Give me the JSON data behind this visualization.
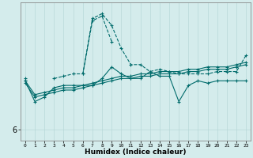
{
  "xlabel": "Humidex (Indice chaleur)",
  "bg_color": "#d4ecec",
  "line_color": "#006b6b",
  "grid_color": "#b8d8d8",
  "x_ticks": [
    0,
    1,
    2,
    3,
    4,
    5,
    6,
    7,
    8,
    9,
    10,
    11,
    12,
    13,
    14,
    15,
    16,
    17,
    18,
    19,
    20,
    21,
    22,
    23
  ],
  "ylim": [
    5.5,
    11.5
  ],
  "y_tick_value": 6,
  "series_smooth1": [
    8.1,
    7.5,
    7.6,
    7.7,
    7.8,
    7.8,
    7.9,
    8.0,
    8.1,
    8.2,
    8.3,
    8.3,
    8.4,
    8.4,
    8.5,
    8.5,
    8.5,
    8.6,
    8.6,
    8.7,
    8.7,
    8.7,
    8.8,
    8.9
  ],
  "series_smooth2": [
    8.0,
    7.4,
    7.5,
    7.6,
    7.7,
    7.7,
    7.8,
    7.9,
    8.0,
    8.1,
    8.2,
    8.2,
    8.3,
    8.3,
    8.4,
    8.4,
    8.4,
    8.5,
    8.5,
    8.6,
    8.6,
    8.6,
    8.7,
    8.8
  ],
  "series_volatile1": [
    8.1,
    7.2,
    7.4,
    7.8,
    7.9,
    7.9,
    7.9,
    7.9,
    8.2,
    8.7,
    8.4,
    8.2,
    8.2,
    8.5,
    8.3,
    8.3,
    7.2,
    7.9,
    8.1,
    8.0,
    8.1,
    8.1,
    8.1,
    8.1
  ],
  "series_volatile2": [
    8.2,
    null,
    null,
    8.2,
    8.3,
    8.4,
    8.4,
    10.8,
    11.0,
    10.5,
    9.5,
    8.8,
    8.8,
    8.5,
    8.6,
    8.5,
    8.4,
    8.4,
    8.4,
    8.4,
    8.5,
    8.5,
    8.5,
    9.2
  ],
  "series_peak": [
    null,
    null,
    null,
    null,
    null,
    null,
    8.4,
    10.7,
    10.9,
    9.8,
    null,
    null,
    null,
    null,
    null,
    null,
    null,
    null,
    null,
    null,
    null,
    null,
    null,
    null
  ]
}
